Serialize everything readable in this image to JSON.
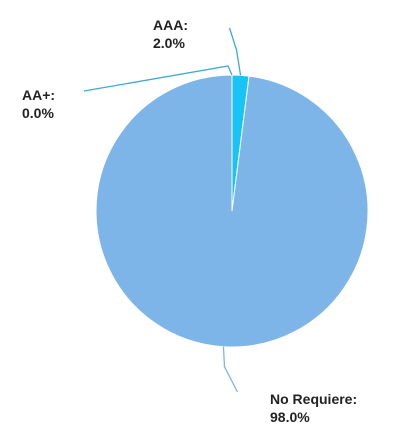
{
  "chart_data": {
    "type": "pie",
    "title": "",
    "slices": [
      {
        "label": "No Requiere",
        "value": 98.0,
        "display": "98.0%",
        "color": "#7eb5e8"
      },
      {
        "label": "AA+",
        "value": 0.0,
        "display": "0.0%",
        "color": "#1d5fa8"
      },
      {
        "label": "AAA",
        "value": 2.0,
        "display": "2.0%",
        "color": "#17c4f5"
      }
    ],
    "start_angle": "top",
    "direction": "clockwise",
    "legend": "none",
    "labels_with_leader_lines": true
  }
}
